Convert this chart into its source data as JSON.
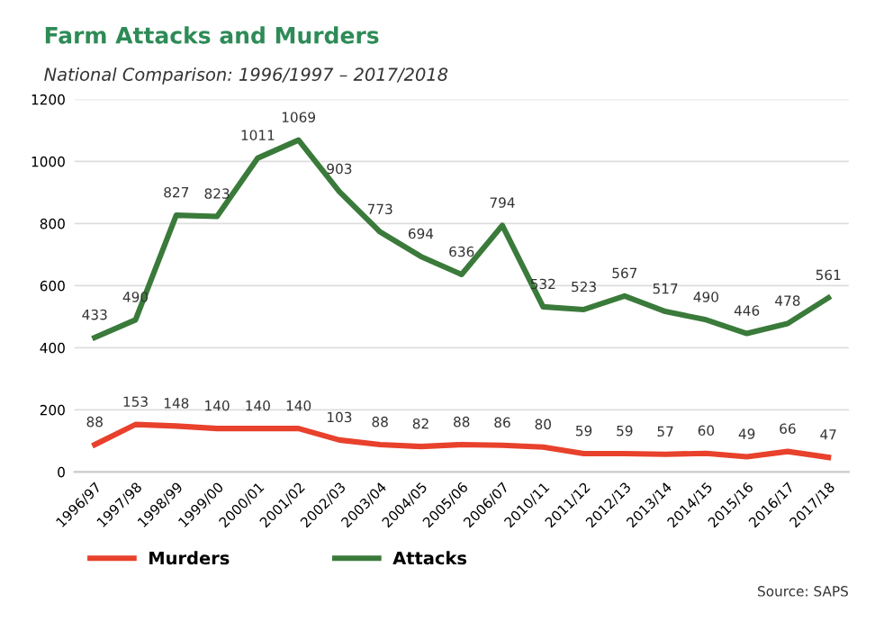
{
  "chart_data": {
    "type": "line",
    "title": "Farm Attacks and Murders",
    "subtitle": "National Comparison: 1996/1997 – 2017/2018",
    "categories": [
      "1996/97",
      "1997/98",
      "1998/99",
      "1999/00",
      "2000/01",
      "2001/02",
      "2002/03",
      "2003/04",
      "2004/05",
      "2005/06",
      "2006/07",
      "2010/11",
      "2011/12",
      "2012/13",
      "2013/14",
      "2014/15",
      "2015/16",
      "2016/17",
      "2017/18"
    ],
    "series": [
      {
        "name": "Murders",
        "color": "#e8412c",
        "values": [
          88,
          153,
          148,
          140,
          140,
          140,
          103,
          88,
          82,
          88,
          86,
          80,
          59,
          59,
          57,
          60,
          49,
          66,
          47
        ]
      },
      {
        "name": "Attacks",
        "color": "#3a7a3a",
        "values": [
          433,
          490,
          827,
          823,
          1011,
          1069,
          903,
          773,
          694,
          636,
          794,
          532,
          523,
          567,
          517,
          490,
          446,
          478,
          561
        ]
      }
    ],
    "ylim": [
      0,
      1200
    ],
    "yticks": [
      0,
      200,
      400,
      600,
      800,
      1000,
      1200
    ],
    "grid": "y",
    "legend": "bottom",
    "data_labels": true,
    "marker": "none",
    "line_style": "solid",
    "annotations": [
      "Source: SAPS"
    ]
  }
}
